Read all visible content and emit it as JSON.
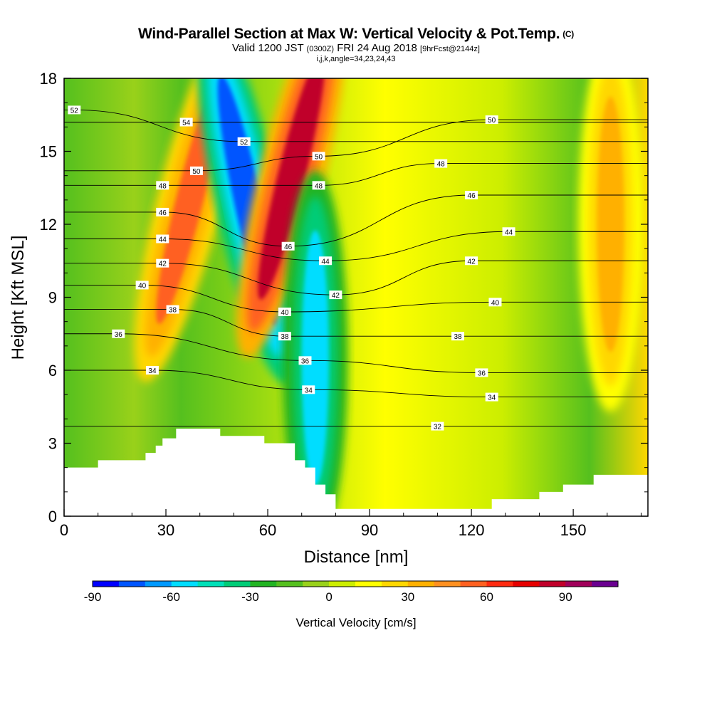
{
  "title": {
    "main": "Wind-Parallel Section at Max W: Vertical Velocity & Pot.Temp.",
    "copyright": "(C)",
    "valid_prefix": "Valid 1200 JST",
    "valid_utc": "(0300Z)",
    "valid_date": "FRI 24 Aug 2018",
    "forecast": "[9hrFcst@2144z]",
    "indices": "i,j,k,angle=34,23,24,43"
  },
  "chart_data": {
    "type": "heatmap",
    "xlabel": "Distance [nm]",
    "ylabel": "Height [Kft MSL]",
    "xlim": [
      0,
      172
    ],
    "ylim": [
      0,
      18
    ],
    "xticks": [
      0,
      30,
      60,
      90,
      120,
      150
    ],
    "yticks": [
      0,
      3,
      6,
      9,
      12,
      15,
      18
    ],
    "colorbar": {
      "title": "Vertical Velocity [cm/s]",
      "min": -90,
      "max": 110,
      "step": 10,
      "labels": [
        -90,
        -60,
        -30,
        0,
        30,
        60,
        90
      ],
      "colors": [
        "#0000ff",
        "#0055ff",
        "#0099ff",
        "#00ddff",
        "#00e0b8",
        "#00cc77",
        "#22b422",
        "#55c01e",
        "#99d11a",
        "#ccee00",
        "#ffff00",
        "#ffd700",
        "#ffb000",
        "#ff9020",
        "#ff6020",
        "#ff2a10",
        "#e60000",
        "#c0002a",
        "#a0005a",
        "#6a0090"
      ]
    },
    "terrain_kft": [
      [
        0,
        2.0
      ],
      [
        10,
        2.0
      ],
      [
        10,
        2.3
      ],
      [
        24,
        2.3
      ],
      [
        24,
        2.6
      ],
      [
        27,
        2.6
      ],
      [
        27,
        2.9
      ],
      [
        29,
        2.9
      ],
      [
        29,
        3.2
      ],
      [
        33,
        3.2
      ],
      [
        33,
        3.6
      ],
      [
        46,
        3.6
      ],
      [
        46,
        3.3
      ],
      [
        59,
        3.3
      ],
      [
        59,
        3.0
      ],
      [
        68,
        3.0
      ],
      [
        68,
        2.3
      ],
      [
        71,
        2.3
      ],
      [
        71,
        2.0
      ],
      [
        74,
        2.0
      ],
      [
        74,
        1.3
      ],
      [
        77,
        1.3
      ],
      [
        77,
        0.9
      ],
      [
        80,
        0.9
      ],
      [
        80,
        0.3
      ],
      [
        126,
        0.3
      ],
      [
        126,
        0.7
      ],
      [
        140,
        0.7
      ],
      [
        140,
        1.0
      ],
      [
        147,
        1.0
      ],
      [
        147,
        1.3
      ],
      [
        156,
        1.3
      ],
      [
        156,
        1.7
      ],
      [
        172,
        1.7
      ]
    ],
    "velocity_features": [
      {
        "x": 37,
        "y": 13,
        "value": 55,
        "shape": "updraft-tilted"
      },
      {
        "x": 54,
        "y": 13,
        "value": -80,
        "shape": "downdraft-tilted"
      },
      {
        "x": 67,
        "y": 14,
        "value": 85,
        "shape": "updraft-tilted"
      },
      {
        "x": 74,
        "y": 6.5,
        "value": -55,
        "shape": "downdraft"
      },
      {
        "x": 161,
        "y": 12,
        "value": 35,
        "shape": "updraft-edge"
      }
    ],
    "theta_labels": [
      {
        "value": "52",
        "x": 3,
        "y": 16.7
      },
      {
        "value": "54",
        "x": 36,
        "y": 16.2
      },
      {
        "value": "52",
        "x": 53,
        "y": 15.4
      },
      {
        "value": "50",
        "x": 39,
        "y": 14.2
      },
      {
        "value": "50",
        "x": 75,
        "y": 14.8
      },
      {
        "value": "48",
        "x": 29,
        "y": 13.6
      },
      {
        "value": "48",
        "x": 75,
        "y": 13.6
      },
      {
        "value": "48",
        "x": 111,
        "y": 14.5
      },
      {
        "value": "50",
        "x": 126,
        "y": 16.3
      },
      {
        "value": "46",
        "x": 29,
        "y": 12.5
      },
      {
        "value": "46",
        "x": 66,
        "y": 11.1
      },
      {
        "value": "46",
        "x": 120,
        "y": 13.2
      },
      {
        "value": "44",
        "x": 29,
        "y": 11.4
      },
      {
        "value": "44",
        "x": 77,
        "y": 10.5
      },
      {
        "value": "44",
        "x": 131,
        "y": 11.7
      },
      {
        "value": "42",
        "x": 29,
        "y": 10.4
      },
      {
        "value": "42",
        "x": 80,
        "y": 9.1
      },
      {
        "value": "42",
        "x": 120,
        "y": 10.5
      },
      {
        "value": "40",
        "x": 23,
        "y": 9.5
      },
      {
        "value": "40",
        "x": 65,
        "y": 8.4
      },
      {
        "value": "40",
        "x": 127,
        "y": 8.8
      },
      {
        "value": "38",
        "x": 32,
        "y": 8.5
      },
      {
        "value": "38",
        "x": 65,
        "y": 7.4
      },
      {
        "value": "38",
        "x": 116,
        "y": 7.4
      },
      {
        "value": "36",
        "x": 16,
        "y": 7.5
      },
      {
        "value": "36",
        "x": 71,
        "y": 6.4
      },
      {
        "value": "36",
        "x": 123,
        "y": 5.9
      },
      {
        "value": "34",
        "x": 26,
        "y": 6.0
      },
      {
        "value": "34",
        "x": 72,
        "y": 5.2
      },
      {
        "value": "34",
        "x": 126,
        "y": 4.9
      },
      {
        "value": "32",
        "x": 110,
        "y": 3.7
      }
    ]
  }
}
